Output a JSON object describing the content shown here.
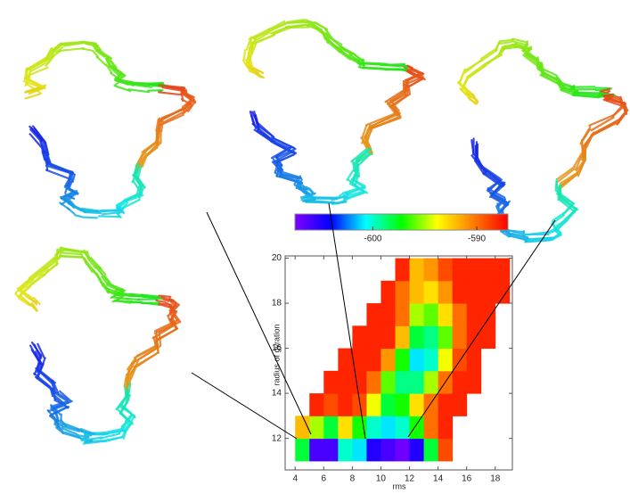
{
  "chart_data": {
    "type": "heatmap",
    "xlabel": "rms",
    "ylabel": "radius of gyration",
    "x_edges": [
      4,
      5,
      6,
      7,
      8,
      9,
      10,
      11,
      12,
      13,
      14,
      15,
      16,
      17,
      18,
      19
    ],
    "y_edges": [
      11,
      12,
      13,
      14,
      15,
      16,
      17,
      18,
      19,
      20
    ],
    "values": [
      [
        -598,
        -606,
        -606,
        -600,
        -601,
        -605,
        -606,
        -607,
        -605,
        -598,
        -589,
        null,
        null,
        null,
        null
      ],
      [
        -592,
        -595,
        -598,
        -593,
        -597,
        -600,
        -601,
        -600,
        -597,
        -590,
        -588,
        null,
        null,
        null,
        null
      ],
      [
        null,
        -588,
        -589,
        -588,
        -589,
        -594,
        -598,
        -597,
        -593,
        -590,
        -588,
        -588,
        null,
        null,
        null
      ],
      [
        null,
        null,
        -588,
        -588,
        -588,
        -590,
        -596,
        -599,
        -599,
        -595,
        -590,
        -588,
        -588,
        null,
        null
      ],
      [
        null,
        null,
        null,
        -588,
        -588,
        -588,
        -591,
        -597,
        -601,
        -600,
        -594,
        -589,
        -588,
        null,
        null
      ],
      [
        null,
        null,
        null,
        null,
        -588,
        -588,
        -588,
        -592,
        -598,
        -599,
        -596,
        -590,
        -588,
        -588,
        null
      ],
      [
        null,
        null,
        null,
        null,
        null,
        -588,
        -588,
        -590,
        -595,
        -596,
        -593,
        -590,
        -588,
        -588,
        null
      ],
      [
        null,
        null,
        null,
        null,
        null,
        null,
        -588,
        -590,
        -592,
        -593,
        -591,
        -588,
        -588,
        -588,
        -588
      ],
      [
        null,
        null,
        null,
        null,
        null,
        null,
        null,
        -588,
        -592,
        -591,
        -589,
        -588,
        -588,
        -588,
        -588
      ]
    ],
    "xlim": [
      3.3,
      19.2
    ],
    "ylim": [
      10.6,
      20.1
    ],
    "xticks": [
      4,
      6,
      8,
      10,
      12,
      14,
      16,
      18
    ],
    "yticks": [
      12,
      14,
      16,
      18,
      20
    ],
    "zlim": [
      -607.5,
      -587
    ],
    "zticks": [
      -600,
      -590
    ],
    "colormap": [
      "#8000ff",
      "#0000ff",
      "#00ffff",
      "#00ff00",
      "#ffff00",
      "#ff8000",
      "#ff0000"
    ]
  }
}
